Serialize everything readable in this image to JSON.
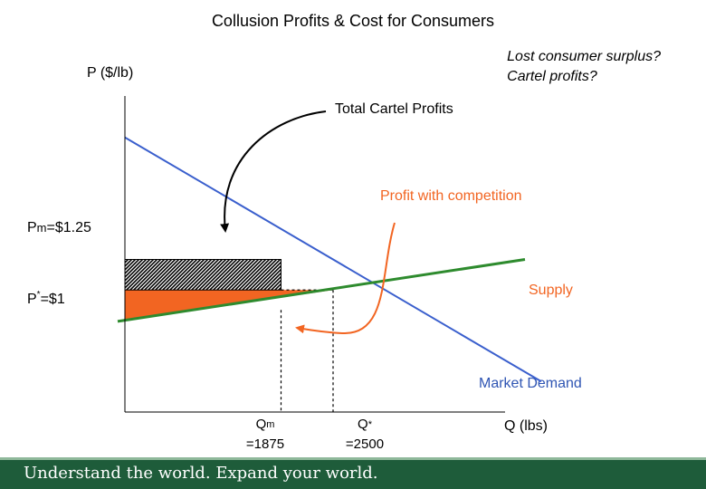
{
  "chart_data": {
    "type": "line",
    "title": "Collusion Profits & Cost for Consumers",
    "ylabel": "P ($/lb)",
    "xlabel": "Q (lbs)",
    "question_lines": [
      "Lost consumer surplus?",
      "Cartel profits?"
    ],
    "xlim": [
      0,
      5000
    ],
    "ylim": [
      0,
      2.5
    ],
    "series": [
      {
        "name": "Market Demand",
        "color": "#3a5fcd",
        "x": [
          0,
          5000
        ],
        "y": [
          2.25,
          0.25
        ]
      },
      {
        "name": "Supply",
        "color": "#2e8b2e",
        "x": [
          0,
          5000
        ],
        "y": [
          0.75,
          1.25
        ]
      }
    ],
    "monopoly_price_label": "P",
    "monopoly_price_sup": "m",
    "monopoly_price_value": "=$1.25",
    "competitive_price_label": "P",
    "competitive_price_sup": "*",
    "competitive_price_value": "=$1",
    "monopoly_price": 1.25,
    "competitive_price": 1.0,
    "monopoly_quantity": 1875,
    "competitive_quantity": 2500,
    "qm_label": "Q",
    "qm_sup": "m",
    "qm_value": "=1875",
    "qstar_label": "Q",
    "qstar_sup": "*",
    "qstar_value": "=2500",
    "annotations": {
      "total_cartel_profits": "Total Cartel Profits",
      "profit_with_competition": "Profit with competition",
      "supply": "Supply",
      "market_demand": "Market Demand"
    },
    "colors": {
      "cartel_area": "#000000",
      "competition_area": "#f26522",
      "arrow_black": "#000000",
      "arrow_orange": "#f26522"
    }
  },
  "footer": {
    "tagline": "Understand the world. Expand your world."
  }
}
